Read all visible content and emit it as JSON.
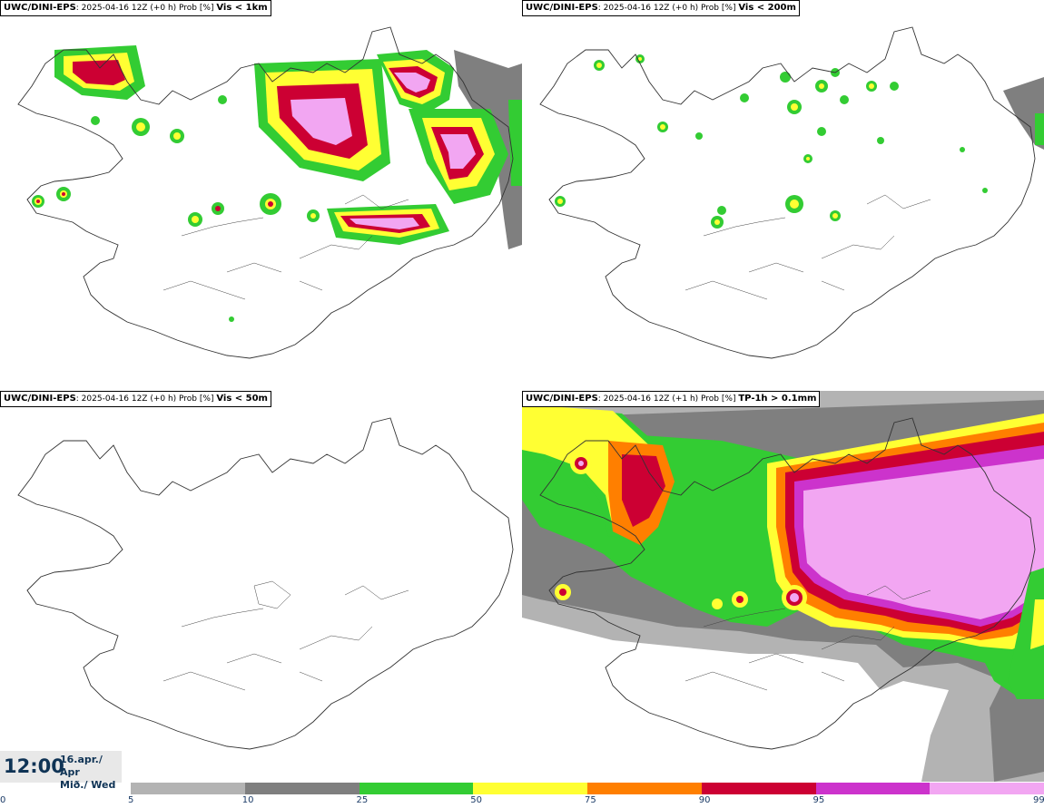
{
  "panels": [
    {
      "model": "UWC/DINI-EPS",
      "run": "2025-04-16 12Z (+0 h) Prob [%]",
      "threshold": "Vis < 1km"
    },
    {
      "model": "UWC/DINI-EPS",
      "run": "2025-04-16 12Z (+0 h) Prob [%]",
      "threshold": "Vis < 200m"
    },
    {
      "model": "UWC/DINI-EPS",
      "run": "2025-04-16 12Z (+0 h) Prob [%]",
      "threshold": "Vis < 50m"
    },
    {
      "model": "UWC/DINI-EPS",
      "run": "2025-04-16 12Z (+1 h) Prob [%]",
      "threshold": "TP-1h > 0.1mm"
    }
  ],
  "valid_time": {
    "time": "12:00",
    "date_line1": "16.apr./ Apr",
    "date_line2": "Mið./ Wed"
  },
  "colorbar": {
    "ticks": [
      "0",
      "5",
      "10",
      "25",
      "50",
      "75",
      "90",
      "95",
      "99"
    ],
    "colors": [
      "#b3b3b3",
      "#7f7f7f",
      "#33cc33",
      "#ffff33",
      "#ff7f00",
      "#cc0033",
      "#cc33cc",
      "#f2a6f2"
    ]
  }
}
